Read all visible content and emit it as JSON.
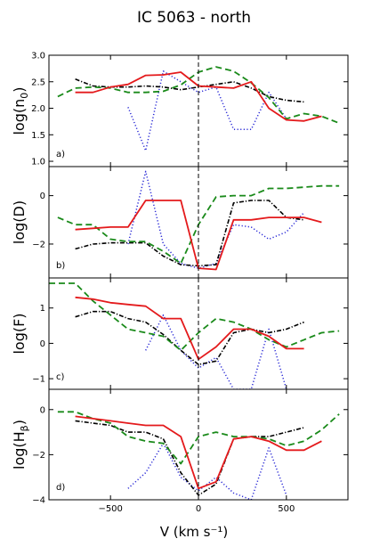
{
  "figure": {
    "title": "IC 5063 - north",
    "xlabel": "V (km s⁻¹)"
  },
  "chart_data": [
    {
      "type": "line",
      "panel_label": "a)",
      "ylabel_main": "log(n",
      "ylabel_sub": "0",
      "ylabel_end": ")",
      "xlim": [
        -850,
        850
      ],
      "ylim": [
        0.9,
        3.0
      ],
      "yticks": [
        1.0,
        1.5,
        2.0,
        2.5,
        3.0
      ],
      "ytick_labels": [
        "1.0",
        "1.5",
        "2.0",
        "2.5",
        "3.0"
      ],
      "series": [
        {
          "style": "red",
          "x": [
            -700,
            -600,
            -500,
            -400,
            -300,
            -200,
            -100,
            0,
            100,
            200,
            300,
            400,
            500,
            600,
            700
          ],
          "y": [
            2.3,
            2.3,
            2.4,
            2.45,
            2.62,
            2.63,
            2.68,
            2.42,
            2.4,
            2.38,
            2.5,
            2.0,
            1.78,
            1.76,
            1.85
          ]
        },
        {
          "style": "green",
          "x": [
            -800,
            -700,
            -600,
            -500,
            -400,
            -300,
            -200,
            -100,
            0,
            100,
            200,
            300,
            400,
            500,
            600,
            700,
            800
          ],
          "y": [
            2.22,
            2.38,
            2.4,
            2.38,
            2.3,
            2.3,
            2.32,
            2.44,
            2.68,
            2.78,
            2.7,
            2.48,
            2.2,
            1.8,
            1.9,
            1.85,
            1.72
          ]
        },
        {
          "style": "black",
          "x": [
            -700,
            -600,
            -500,
            -400,
            -300,
            -200,
            -100,
            0,
            100,
            200,
            300,
            400,
            500,
            600
          ],
          "y": [
            2.55,
            2.42,
            2.4,
            2.4,
            2.42,
            2.4,
            2.35,
            2.4,
            2.45,
            2.5,
            2.38,
            2.22,
            2.15,
            2.12
          ]
        },
        {
          "style": "blue",
          "x": [
            -400,
            -300,
            -200,
            -100,
            0,
            100,
            200,
            300,
            400,
            500
          ],
          "y": [
            2.02,
            1.2,
            2.7,
            2.5,
            2.3,
            2.4,
            1.6,
            1.6,
            2.3,
            1.8
          ]
        }
      ]
    },
    {
      "type": "line",
      "panel_label": "b)",
      "ylabel_main": "log(D)",
      "xlim": [
        -850,
        850
      ],
      "ylim": [
        -3.4,
        1.2
      ],
      "yticks": [
        -2,
        0
      ],
      "ytick_labels": [
        "−2",
        "0"
      ],
      "series": [
        {
          "style": "red",
          "x": [
            -700,
            -600,
            -500,
            -400,
            -300,
            -200,
            -100,
            0,
            100,
            200,
            300,
            400,
            500,
            600,
            700
          ],
          "y": [
            -1.4,
            -1.35,
            -1.3,
            -1.3,
            -0.2,
            -0.2,
            -0.2,
            -3.0,
            -3.05,
            -1.0,
            -1.0,
            -0.9,
            -0.9,
            -0.9,
            -1.1
          ]
        },
        {
          "style": "green",
          "x": [
            -800,
            -700,
            -600,
            -500,
            -400,
            -300,
            -200,
            -100,
            0,
            100,
            200,
            300,
            400,
            500,
            600,
            700,
            800
          ],
          "y": [
            -0.9,
            -1.2,
            -1.2,
            -1.8,
            -1.9,
            -1.9,
            -2.3,
            -2.8,
            -1.2,
            -0.05,
            0.0,
            0.0,
            0.3,
            0.3,
            0.35,
            0.4,
            0.4
          ]
        },
        {
          "style": "black",
          "x": [
            -700,
            -600,
            -500,
            -400,
            -300,
            -200,
            -100,
            0,
            100,
            200,
            300,
            400,
            500,
            600
          ],
          "y": [
            -2.2,
            -2.0,
            -1.95,
            -1.95,
            -1.95,
            -2.5,
            -2.85,
            -2.9,
            -2.85,
            -0.3,
            -0.2,
            -0.2,
            -0.9,
            -1.0
          ]
        },
        {
          "style": "blue",
          "x": [
            -400,
            -300,
            -200,
            -100,
            0,
            100,
            200,
            300,
            400,
            500,
            600
          ],
          "y": [
            -2.0,
            1.0,
            -2.0,
            -2.8,
            -3.0,
            -2.8,
            -1.2,
            -1.3,
            -1.8,
            -1.5,
            -0.7
          ]
        }
      ]
    },
    {
      "type": "line",
      "panel_label": "c)",
      "ylabel_main": "log(F)",
      "xlim": [
        -850,
        850
      ],
      "ylim": [
        -1.3,
        1.85
      ],
      "yticks": [
        -1,
        0,
        1
      ],
      "ytick_labels": [
        "−1",
        "0",
        "1"
      ],
      "series": [
        {
          "style": "red",
          "x": [
            -700,
            -600,
            -500,
            -400,
            -300,
            -200,
            -100,
            0,
            100,
            200,
            300,
            400,
            500,
            600
          ],
          "y": [
            1.3,
            1.25,
            1.15,
            1.1,
            1.05,
            0.7,
            0.7,
            -0.45,
            -0.1,
            0.4,
            0.4,
            0.2,
            -0.15,
            -0.15
          ]
        },
        {
          "style": "green",
          "x": [
            -850,
            -800,
            -700,
            -600,
            -500,
            -400,
            -300,
            -200,
            -100,
            0,
            100,
            200,
            300,
            400,
            500,
            600,
            700,
            800
          ],
          "y": [
            1.7,
            1.7,
            1.7,
            1.2,
            0.8,
            0.4,
            0.3,
            0.2,
            -0.2,
            0.3,
            0.7,
            0.6,
            0.4,
            0.1,
            -0.1,
            0.1,
            0.3,
            0.35
          ]
        },
        {
          "style": "black",
          "x": [
            -700,
            -600,
            -500,
            -400,
            -300,
            -200,
            -100,
            0,
            100,
            200,
            300,
            400,
            500,
            600
          ],
          "y": [
            0.75,
            0.9,
            0.9,
            0.7,
            0.6,
            0.25,
            -0.2,
            -0.6,
            -0.5,
            0.3,
            0.4,
            0.3,
            0.4,
            0.6
          ]
        },
        {
          "style": "blue",
          "x": [
            -300,
            -200,
            -100,
            0,
            100,
            200,
            300,
            400,
            500
          ],
          "y": [
            -0.2,
            0.8,
            -0.2,
            -0.7,
            -0.4,
            -1.3,
            -1.3,
            0.4,
            -1.3
          ]
        }
      ]
    },
    {
      "type": "line",
      "panel_label": "d)",
      "ylabel_main": "log(H",
      "ylabel_sub": "β",
      "ylabel_end": ")",
      "xlim": [
        -850,
        850
      ],
      "ylim": [
        -4.0,
        0.9
      ],
      "yticks": [
        -4,
        -2,
        0
      ],
      "ytick_labels": [
        "−4",
        "−2",
        "0"
      ],
      "xticks": [
        -500,
        0,
        500
      ],
      "xtick_labels": [
        "−500",
        "0",
        "500"
      ],
      "series": [
        {
          "style": "red",
          "x": [
            -700,
            -600,
            -500,
            -400,
            -300,
            -200,
            -100,
            0,
            100,
            200,
            300,
            400,
            500,
            600,
            700
          ],
          "y": [
            -0.3,
            -0.4,
            -0.5,
            -0.6,
            -0.7,
            -0.7,
            -1.2,
            -3.5,
            -3.2,
            -1.3,
            -1.2,
            -1.4,
            -1.8,
            -1.8,
            -1.4
          ]
        },
        {
          "style": "green",
          "x": [
            -800,
            -700,
            -600,
            -500,
            -400,
            -300,
            -200,
            -100,
            0,
            100,
            200,
            300,
            400,
            500,
            600,
            700,
            800
          ],
          "y": [
            -0.1,
            -0.1,
            -0.4,
            -0.6,
            -1.2,
            -1.4,
            -1.5,
            -2.4,
            -1.2,
            -1.0,
            -1.2,
            -1.2,
            -1.3,
            -1.6,
            -1.4,
            -0.9,
            -0.2
          ]
        },
        {
          "style": "black",
          "x": [
            -700,
            -600,
            -500,
            -400,
            -300,
            -200,
            -100,
            0,
            100,
            200,
            300,
            400,
            500,
            600
          ],
          "y": [
            -0.5,
            -0.6,
            -0.7,
            -1.0,
            -1.0,
            -1.3,
            -2.8,
            -3.8,
            -3.3,
            -1.3,
            -1.2,
            -1.2,
            -1.0,
            -0.8
          ]
        },
        {
          "style": "blue",
          "x": [
            -400,
            -300,
            -200,
            -100,
            0,
            100,
            200,
            300,
            400,
            500
          ],
          "y": [
            -3.5,
            -2.8,
            -1.5,
            -3.0,
            -3.6,
            -3.0,
            -3.7,
            -4.0,
            -1.7,
            -3.8
          ]
        }
      ]
    }
  ],
  "styles": {
    "red": {
      "color": "#e41a1c",
      "dash": "",
      "width": 1.8
    },
    "green": {
      "color": "#1a8a1a",
      "dash": "7 4",
      "width": 1.8
    },
    "black": {
      "color": "#000000",
      "dash": "5 2 1.2 2",
      "width": 1.6
    },
    "blue": {
      "color": "#2a2ad6",
      "dash": "1.2 2.4",
      "width": 1.5
    }
  }
}
